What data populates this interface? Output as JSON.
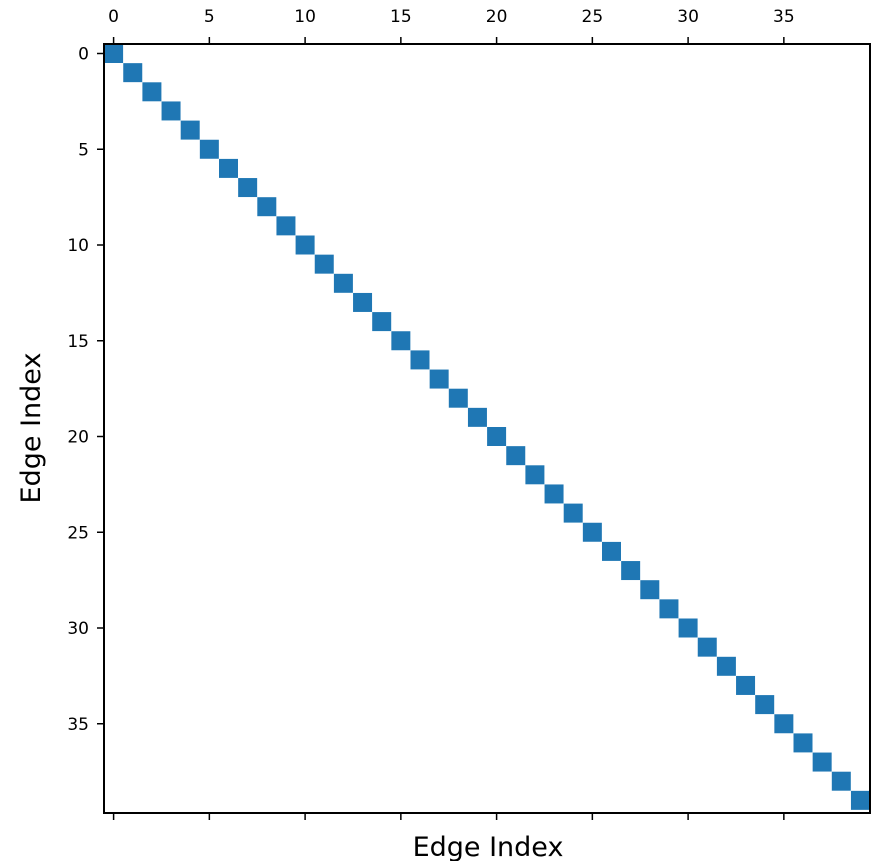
{
  "chart_data": {
    "type": "heatmap",
    "plot_style": "spy",
    "matrix_size": 40,
    "nonzero_entries": [
      [
        0,
        0
      ],
      [
        1,
        1
      ],
      [
        2,
        2
      ],
      [
        3,
        3
      ],
      [
        4,
        4
      ],
      [
        5,
        5
      ],
      [
        6,
        6
      ],
      [
        7,
        7
      ],
      [
        8,
        8
      ],
      [
        9,
        9
      ],
      [
        10,
        10
      ],
      [
        11,
        11
      ],
      [
        12,
        12
      ],
      [
        13,
        13
      ],
      [
        14,
        14
      ],
      [
        15,
        15
      ],
      [
        16,
        16
      ],
      [
        17,
        17
      ],
      [
        18,
        18
      ],
      [
        19,
        19
      ],
      [
        20,
        20
      ],
      [
        21,
        21
      ],
      [
        22,
        22
      ],
      [
        23,
        23
      ],
      [
        24,
        24
      ],
      [
        25,
        25
      ],
      [
        26,
        26
      ],
      [
        27,
        27
      ],
      [
        28,
        28
      ],
      [
        29,
        29
      ],
      [
        30,
        30
      ],
      [
        31,
        31
      ],
      [
        32,
        32
      ],
      [
        33,
        33
      ],
      [
        34,
        34
      ],
      [
        35,
        35
      ],
      [
        36,
        36
      ],
      [
        37,
        37
      ],
      [
        38,
        38
      ],
      [
        39,
        39
      ]
    ],
    "x_axis": {
      "label": "Edge Index",
      "tick_position": "top",
      "ticks": [
        0,
        5,
        10,
        15,
        20,
        25,
        30,
        35
      ],
      "tick_labels": [
        "0",
        "5",
        "10",
        "15",
        "20",
        "25",
        "30",
        "35"
      ],
      "range": [
        -0.5,
        39.5
      ]
    },
    "y_axis": {
      "label": "Edge Index",
      "inverted": true,
      "ticks": [
        0,
        5,
        10,
        15,
        20,
        25,
        30,
        35
      ],
      "tick_labels": [
        "0",
        "5",
        "10",
        "15",
        "20",
        "25",
        "30",
        "35"
      ],
      "range": [
        -0.5,
        39.5
      ]
    },
    "grid": false,
    "marker_color": "#1f77b4"
  }
}
